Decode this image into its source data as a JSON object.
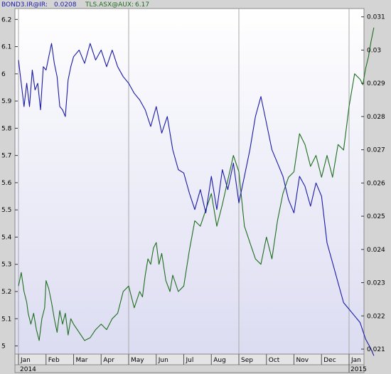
{
  "chart_data": {
    "type": "line",
    "legend": [
      {
        "label": "BOND3.IR@IR:",
        "value": "0.0208",
        "color": "#1a1aa8"
      },
      {
        "label": "TLS.ASX@AUX:",
        "value": "6.17",
        "color": "#1e6e1e"
      }
    ],
    "left_axis": {
      "ticks": [
        "6.2",
        "6.1",
        "6",
        "5.9",
        "5.8",
        "5.7",
        "5.6",
        "5.5",
        "5.4",
        "5.3",
        "5.2",
        "5.1",
        "5"
      ],
      "ylim": [
        4.97,
        6.24
      ]
    },
    "right_axis": {
      "ticks": [
        "0.031",
        "0.03",
        "0.029",
        "0.028",
        "0.027",
        "0.026",
        "0.025",
        "0.024",
        "0.023",
        "0.022",
        "0.021"
      ],
      "ylim": [
        0.02085,
        0.03125
      ]
    },
    "x_axis": {
      "months": [
        "Jan",
        "Feb",
        "Mar",
        "Apr",
        "May",
        "Jun",
        "Jul",
        "Aug",
        "Sep",
        "Oct",
        "Nov",
        "Dec",
        "Jan"
      ],
      "years": [
        "2014",
        "2015"
      ]
    },
    "series": [
      {
        "name": "TLS.ASX@AUX",
        "axis": "left",
        "color": "#1e6e1e",
        "x": [
          0.0,
          0.1,
          0.2,
          0.3,
          0.35,
          0.45,
          0.55,
          0.65,
          0.75,
          0.85,
          0.95,
          1.0,
          1.1,
          1.2,
          1.3,
          1.4,
          1.5,
          1.6,
          1.7,
          1.8,
          1.9,
          2.0,
          2.2,
          2.4,
          2.6,
          2.8,
          3.0,
          3.2,
          3.4,
          3.6,
          3.8,
          4.0,
          4.2,
          4.4,
          4.5,
          4.6,
          4.7,
          4.8,
          4.9,
          5.0,
          5.1,
          5.2,
          5.35,
          5.5,
          5.6,
          5.8,
          6.0,
          6.2,
          6.4,
          6.6,
          6.8,
          7.0,
          7.2,
          7.4,
          7.6,
          7.8,
          8.0,
          8.2,
          8.4,
          8.6,
          8.8,
          9.0,
          9.2,
          9.4,
          9.6,
          9.8,
          10.0,
          10.2,
          10.4,
          10.6,
          10.8,
          11.0,
          11.2,
          11.4,
          11.6,
          11.8,
          12.0,
          12.2,
          12.4,
          12.5,
          12.6,
          12.7,
          12.8,
          12.9
        ],
        "values": [
          5.22,
          5.27,
          5.2,
          5.16,
          5.12,
          5.08,
          5.12,
          5.06,
          5.02,
          5.1,
          5.14,
          5.24,
          5.21,
          5.16,
          5.1,
          5.05,
          5.13,
          5.08,
          5.12,
          5.04,
          5.1,
          5.08,
          5.05,
          5.02,
          5.03,
          5.06,
          5.08,
          5.06,
          5.1,
          5.12,
          5.2,
          5.22,
          5.14,
          5.2,
          5.18,
          5.26,
          5.32,
          5.3,
          5.36,
          5.38,
          5.3,
          5.34,
          5.24,
          5.2,
          5.26,
          5.2,
          5.22,
          5.35,
          5.46,
          5.44,
          5.5,
          5.56,
          5.44,
          5.52,
          5.61,
          5.7,
          5.64,
          5.44,
          5.38,
          5.32,
          5.3,
          5.4,
          5.32,
          5.46,
          5.56,
          5.62,
          5.64,
          5.78,
          5.74,
          5.66,
          5.7,
          5.62,
          5.7,
          5.62,
          5.74,
          5.72,
          5.88,
          6.0,
          5.98,
          5.96,
          6.02,
          6.06,
          6.12,
          6.17
        ]
      },
      {
        "name": "BOND3.IR@IR",
        "axis": "right",
        "color": "#1a1aa8",
        "x": [
          0.0,
          0.1,
          0.2,
          0.3,
          0.4,
          0.5,
          0.6,
          0.7,
          0.8,
          0.9,
          1.0,
          1.1,
          1.2,
          1.3,
          1.4,
          1.5,
          1.6,
          1.7,
          1.8,
          1.9,
          2.0,
          2.2,
          2.4,
          2.6,
          2.8,
          3.0,
          3.2,
          3.4,
          3.6,
          3.8,
          4.0,
          4.2,
          4.4,
          4.6,
          4.8,
          5.0,
          5.2,
          5.4,
          5.6,
          5.8,
          6.0,
          6.2,
          6.4,
          6.6,
          6.8,
          7.0,
          7.2,
          7.4,
          7.6,
          7.8,
          8.0,
          8.2,
          8.4,
          8.6,
          8.8,
          9.0,
          9.2,
          9.4,
          9.6,
          9.8,
          10.0,
          10.2,
          10.4,
          10.6,
          10.8,
          11.0,
          11.2,
          11.4,
          11.6,
          11.8,
          12.0,
          12.2,
          12.4,
          12.6,
          12.8,
          12.9
        ],
        "values": [
          0.0297,
          0.029,
          0.0283,
          0.029,
          0.0283,
          0.0294,
          0.0288,
          0.029,
          0.0282,
          0.0295,
          0.0294,
          0.0298,
          0.0302,
          0.0296,
          0.0292,
          0.0283,
          0.0282,
          0.028,
          0.0291,
          0.0295,
          0.0298,
          0.03,
          0.0296,
          0.0302,
          0.0297,
          0.03,
          0.0295,
          0.03,
          0.0295,
          0.0292,
          0.029,
          0.0287,
          0.0285,
          0.0282,
          0.0277,
          0.0283,
          0.0275,
          0.028,
          0.027,
          0.0264,
          0.0263,
          0.0257,
          0.0252,
          0.0258,
          0.0251,
          0.0262,
          0.0252,
          0.0264,
          0.0258,
          0.0266,
          0.0254,
          0.0262,
          0.027,
          0.028,
          0.0286,
          0.0278,
          0.027,
          0.0266,
          0.0262,
          0.0255,
          0.0251,
          0.0262,
          0.0259,
          0.0253,
          0.026,
          0.0256,
          0.0242,
          0.0236,
          0.023,
          0.0224,
          0.0222,
          0.022,
          0.0218,
          0.0213,
          0.021,
          0.0208
        ]
      }
    ]
  }
}
